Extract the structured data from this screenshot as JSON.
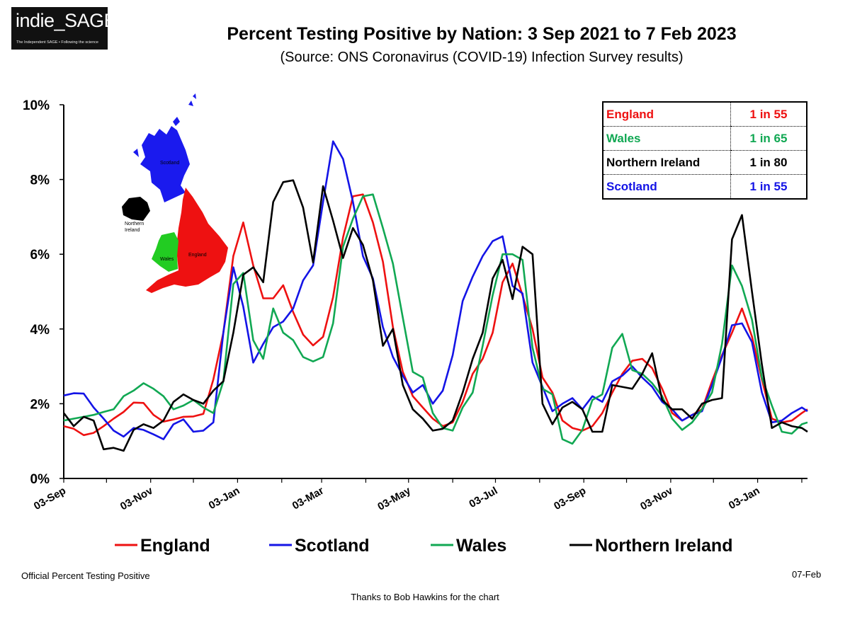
{
  "logo": {
    "main": "indie_SAGE",
    "sub": "The Independent SAGE • Following the science"
  },
  "title": "Percent Testing Positive by Nation: 3 Sep 2021 to 7 Feb 2023",
  "subtitle": "(Source: ONS Coronavirus (COVID-19) Infection Survey results)",
  "footer": {
    "left": "Official Percent Testing Positive",
    "right": "07-Feb",
    "credit": "Thanks to Bob Hawkins for the chart"
  },
  "odds_table": [
    {
      "nation": "England",
      "value": "1 in 55",
      "color": "#ee1111"
    },
    {
      "nation": "Wales",
      "value": "1 in 65",
      "color": "#11a853"
    },
    {
      "nation": "Northern Ireland",
      "value": "1 in 80",
      "color": "#000000"
    },
    {
      "nation": "Scotland",
      "value": "1 in 55",
      "color": "#1414e6"
    }
  ],
  "map_labels": {
    "scotland": "Scotland",
    "northern_ireland": [
      "Northern",
      "Ireland"
    ],
    "wales": "Wales",
    "england": "England"
  },
  "chart_data": {
    "type": "line",
    "title": "Percent Testing Positive by Nation: 3 Sep 2021 to 7 Feb 2023",
    "xlabel": "",
    "ylabel": "",
    "ylim": [
      0,
      10
    ],
    "ytick_labels": [
      "0%",
      "2%",
      "4%",
      "6%",
      "8%",
      "10%"
    ],
    "xtick_labels": [
      "03-Sep",
      "03-Nov",
      "03-Jan",
      "03-Mar",
      "03-May",
      "03-Jul",
      "03-Sep",
      "03-Nov",
      "03-Jan"
    ],
    "xlim": [
      "2021-09-03",
      "2023-02-07"
    ],
    "grid": false,
    "legend_position": "bottom",
    "x": [
      "2021-09-03",
      "2021-09-10",
      "2021-09-17",
      "2021-09-24",
      "2021-10-01",
      "2021-10-08",
      "2021-10-15",
      "2021-10-22",
      "2021-10-29",
      "2021-11-05",
      "2021-11-12",
      "2021-11-19",
      "2021-11-26",
      "2021-12-03",
      "2021-12-10",
      "2021-12-17",
      "2021-12-24",
      "2021-12-31",
      "2022-01-07",
      "2022-01-14",
      "2022-01-21",
      "2022-01-28",
      "2022-02-04",
      "2022-02-11",
      "2022-02-18",
      "2022-02-25",
      "2022-03-04",
      "2022-03-11",
      "2022-03-18",
      "2022-03-25",
      "2022-04-01",
      "2022-04-08",
      "2022-04-15",
      "2022-04-22",
      "2022-04-29",
      "2022-05-06",
      "2022-05-13",
      "2022-05-20",
      "2022-05-27",
      "2022-06-03",
      "2022-06-10",
      "2022-06-17",
      "2022-06-24",
      "2022-07-01",
      "2022-07-08",
      "2022-07-15",
      "2022-07-22",
      "2022-07-29",
      "2022-08-05",
      "2022-08-12",
      "2022-08-19",
      "2022-08-26",
      "2022-09-02",
      "2022-09-09",
      "2022-09-16",
      "2022-09-23",
      "2022-09-30",
      "2022-10-07",
      "2022-10-14",
      "2022-10-21",
      "2022-10-28",
      "2022-11-04",
      "2022-11-11",
      "2022-11-18",
      "2022-11-25",
      "2022-12-02",
      "2022-12-09",
      "2022-12-16",
      "2022-12-23",
      "2022-12-30",
      "2023-01-06",
      "2023-01-13",
      "2023-01-20",
      "2023-01-27",
      "2023-02-03",
      "2023-02-07"
    ],
    "series": [
      {
        "name": "England",
        "color": "#ee1111",
        "values": [
          1.4,
          1.33,
          1.16,
          1.22,
          1.4,
          1.6,
          1.78,
          2.03,
          2.02,
          1.7,
          1.52,
          1.58,
          1.65,
          1.66,
          1.73,
          2.65,
          3.9,
          5.95,
          6.85,
          5.7,
          4.82,
          4.82,
          5.17,
          4.45,
          3.85,
          3.56,
          3.79,
          4.85,
          6.45,
          7.55,
          7.6,
          6.85,
          5.8,
          4.05,
          2.85,
          2.2,
          1.9,
          1.6,
          1.4,
          1.5,
          2.05,
          2.8,
          3.2,
          3.9,
          5.25,
          5.75,
          4.9,
          4.0,
          2.7,
          2.3,
          1.55,
          1.35,
          1.28,
          1.4,
          1.75,
          2.3,
          2.8,
          3.15,
          3.2,
          2.95,
          2.4,
          1.75,
          1.55,
          1.7,
          1.85,
          2.6,
          3.3,
          3.9,
          4.55,
          3.8,
          2.65,
          1.6,
          1.5,
          1.55,
          1.75,
          1.85
        ]
      },
      {
        "name": "Scotland",
        "color": "#1414e6",
        "values": [
          2.22,
          2.28,
          2.27,
          1.9,
          1.6,
          1.28,
          1.12,
          1.35,
          1.3,
          1.18,
          1.05,
          1.45,
          1.58,
          1.25,
          1.28,
          1.5,
          3.9,
          5.65,
          4.6,
          3.1,
          3.6,
          4.05,
          4.2,
          4.55,
          5.3,
          5.7,
          7.4,
          9.02,
          8.55,
          7.4,
          5.95,
          5.35,
          4.05,
          3.25,
          2.75,
          2.3,
          2.5,
          2.0,
          2.35,
          3.3,
          4.75,
          5.4,
          5.95,
          6.35,
          6.48,
          5.15,
          4.95,
          3.1,
          2.45,
          1.8,
          2.0,
          2.15,
          1.85,
          2.2,
          2.05,
          2.6,
          2.75,
          3.0,
          2.7,
          2.45,
          2.05,
          1.85,
          1.55,
          1.7,
          1.8,
          2.5,
          3.25,
          4.1,
          4.15,
          3.65,
          2.3,
          1.5,
          1.55,
          1.75,
          1.9,
          1.8
        ]
      },
      {
        "name": "Wales",
        "color": "#11a853",
        "values": [
          1.55,
          1.6,
          1.65,
          1.7,
          1.78,
          1.85,
          2.2,
          2.35,
          2.55,
          2.4,
          2.2,
          1.85,
          1.95,
          2.1,
          1.9,
          1.75,
          2.6,
          5.2,
          5.5,
          3.7,
          3.2,
          4.55,
          3.9,
          3.7,
          3.25,
          3.13,
          3.25,
          4.15,
          6.2,
          6.95,
          7.55,
          7.6,
          6.7,
          5.75,
          4.3,
          2.85,
          2.7,
          1.75,
          1.35,
          1.28,
          1.9,
          2.3,
          3.55,
          4.9,
          6.0,
          6.0,
          5.85,
          3.5,
          2.4,
          2.25,
          1.05,
          0.93,
          1.3,
          2.1,
          2.25,
          3.5,
          3.87,
          2.9,
          2.8,
          2.55,
          2.2,
          1.6,
          1.3,
          1.5,
          1.85,
          2.3,
          3.6,
          5.7,
          5.15,
          4.25,
          2.7,
          1.95,
          1.25,
          1.2,
          1.45,
          1.5
        ]
      },
      {
        "name": "Northern Ireland",
        "color": "#000000",
        "values": [
          1.75,
          1.4,
          1.65,
          1.55,
          0.78,
          0.82,
          0.74,
          1.3,
          1.45,
          1.35,
          1.55,
          2.05,
          2.25,
          2.1,
          2.0,
          2.35,
          2.6,
          3.9,
          5.45,
          5.65,
          5.25,
          7.4,
          7.93,
          7.98,
          7.25,
          5.78,
          7.82,
          6.9,
          5.9,
          6.7,
          6.25,
          5.3,
          3.55,
          4.0,
          2.5,
          1.85,
          1.6,
          1.28,
          1.33,
          1.55,
          2.3,
          3.2,
          3.9,
          5.35,
          5.85,
          4.8,
          6.2,
          6.0,
          2.0,
          1.45,
          1.9,
          2.05,
          1.85,
          1.25,
          1.25,
          2.5,
          2.45,
          2.4,
          2.8,
          3.35,
          2.1,
          1.85,
          1.85,
          1.6,
          2.0,
          2.1,
          2.15,
          6.4,
          7.05,
          5.0,
          3.05,
          1.35,
          1.5,
          1.4,
          1.35,
          1.25
        ]
      }
    ]
  }
}
